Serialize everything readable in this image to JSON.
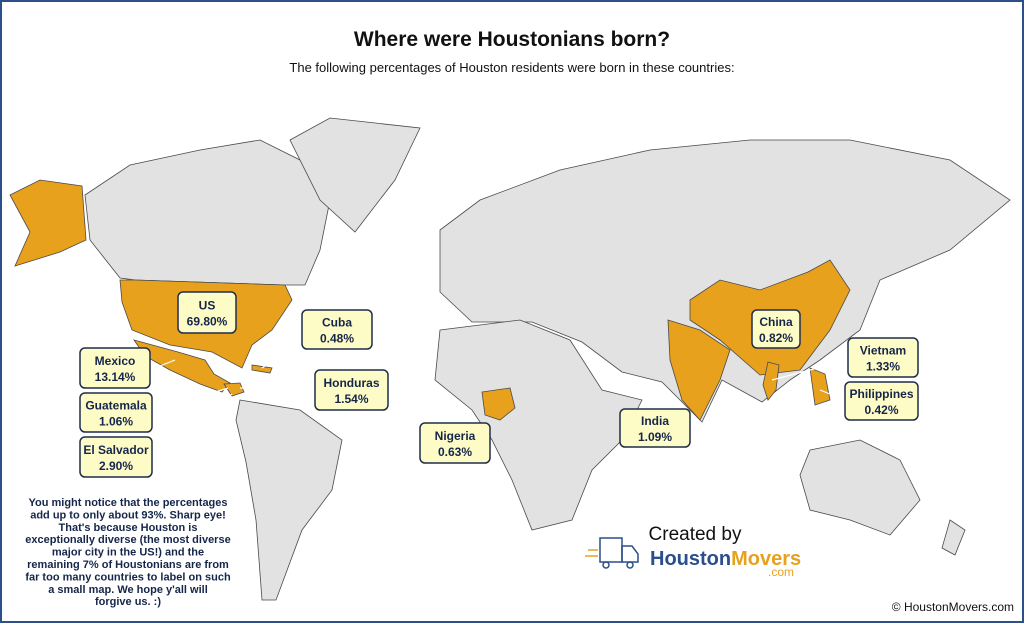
{
  "header": {
    "title": "Where were Houstonians born?",
    "subtitle": "The following percentages of Houston residents were born in these countries:"
  },
  "labels": [
    {
      "country": "US",
      "percent": "69.80%"
    },
    {
      "country": "Cuba",
      "percent": "0.48%"
    },
    {
      "country": "Mexico",
      "percent": "13.14%"
    },
    {
      "country": "Honduras",
      "percent": "1.54%"
    },
    {
      "country": "Guatemala",
      "percent": "1.06%"
    },
    {
      "country": "El Salvador",
      "percent": "2.90%"
    },
    {
      "country": "Nigeria",
      "percent": "0.63%"
    },
    {
      "country": "India",
      "percent": "1.09%"
    },
    {
      "country": "China",
      "percent": "0.82%"
    },
    {
      "country": "Vietnam",
      "percent": "1.33%"
    },
    {
      "country": "Philippines",
      "percent": "0.42%"
    }
  ],
  "note": [
    "You might notice that the percentages",
    "add up to only about 93%. Sharp eye!",
    "That's because Houston is",
    "exceptionally diverse (the most diverse",
    "major city in the US!) and the",
    "remaining 7% of Houstonians are from",
    "far too many countries to label on such",
    "a small map. We hope y'all will",
    "forgive us. :)"
  ],
  "credit": {
    "created_by": "Created by",
    "brand_a": "Houston",
    "brand_b": "Movers",
    "domain": ".com"
  },
  "copyright": "© HoustonMovers.com"
}
